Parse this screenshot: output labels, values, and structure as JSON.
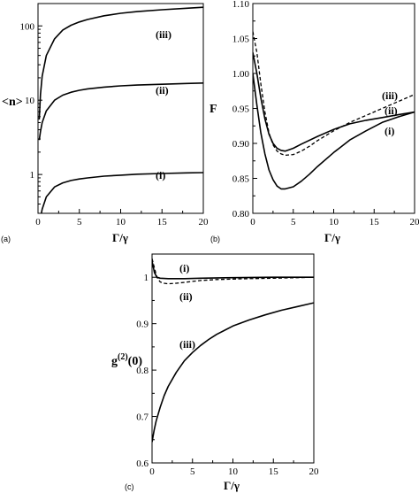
{
  "chart_data": [
    {
      "type": "line",
      "panel_label": "(a)",
      "xlabel": "Γ/γ",
      "ylabel": "<n>",
      "xlim": [
        0,
        20
      ],
      "ylim": [
        0.3,
        200
      ],
      "yscale": "log",
      "xticks": [
        0,
        5,
        10,
        15,
        20
      ],
      "yticks": [
        1,
        10,
        100
      ],
      "series": [
        {
          "name": "(i)",
          "style": "solid",
          "x": [
            0.3,
            0.5,
            1,
            2,
            3,
            4,
            5,
            6,
            8,
            10,
            12,
            15,
            18,
            20
          ],
          "y": [
            0.26,
            0.34,
            0.5,
            0.68,
            0.77,
            0.83,
            0.87,
            0.9,
            0.95,
            0.98,
            1.01,
            1.03,
            1.05,
            1.06
          ]
        },
        {
          "name": "(ii)",
          "style": "solid",
          "x": [
            0.15,
            0.3,
            0.5,
            1,
            2,
            3,
            4,
            5,
            6,
            8,
            10,
            12,
            15,
            18,
            20
          ],
          "y": [
            2.9,
            3.8,
            5.0,
            7.2,
            10,
            11.7,
            12.8,
            13.6,
            14.2,
            15,
            15.6,
            16,
            16.4,
            16.8,
            17
          ]
        },
        {
          "name": "(iii)",
          "style": "solid",
          "x": [
            0.15,
            0.3,
            0.5,
            1,
            2,
            3,
            4,
            5,
            6,
            8,
            10,
            12,
            15,
            18,
            20
          ],
          "y": [
            5.5,
            12,
            21,
            40,
            67,
            88,
            102,
            113,
            122,
            137,
            148,
            156,
            165,
            173,
            178
          ]
        }
      ],
      "annotations": [
        "(i)",
        "(ii)",
        "(iii)"
      ]
    },
    {
      "type": "line",
      "panel_label": "(b)",
      "xlabel": "Γ/γ",
      "ylabel": "F",
      "xlim": [
        0,
        20
      ],
      "ylim": [
        0.8,
        1.1
      ],
      "xticks": [
        0,
        5,
        10,
        15,
        20
      ],
      "yticks": [
        0.8,
        0.85,
        0.9,
        0.95,
        1.0,
        1.05,
        1.1
      ],
      "ytick_labels": [
        "0.80",
        "0.85",
        "0.90",
        "0.95",
        "1.00",
        "1.05",
        "1.10"
      ],
      "series": [
        {
          "name": "(i)",
          "style": "solid",
          "x": [
            0,
            0.5,
            1,
            1.5,
            2,
            2.5,
            3,
            3.5,
            4,
            5,
            6,
            7,
            8,
            10,
            12,
            14,
            16,
            18,
            20
          ],
          "y": [
            1.0,
            0.955,
            0.915,
            0.885,
            0.862,
            0.848,
            0.839,
            0.835,
            0.835,
            0.838,
            0.846,
            0.856,
            0.867,
            0.887,
            0.905,
            0.918,
            0.93,
            0.938,
            0.945
          ]
        },
        {
          "name": "(ii)",
          "style": "solid",
          "x": [
            0,
            0.5,
            1,
            1.5,
            2,
            2.5,
            3,
            3.5,
            4,
            5,
            6,
            8,
            10,
            12,
            14,
            16,
            18,
            20
          ],
          "y": [
            1.03,
            1.0,
            0.965,
            0.935,
            0.913,
            0.9,
            0.893,
            0.89,
            0.889,
            0.893,
            0.899,
            0.91,
            0.92,
            0.928,
            0.933,
            0.937,
            0.941,
            0.945
          ]
        },
        {
          "name": "(iii)",
          "style": "dashed",
          "x": [
            0,
            0.5,
            1,
            1.5,
            2,
            2.5,
            3,
            3.5,
            4,
            5,
            6,
            7,
            8,
            10,
            12,
            14,
            16,
            18,
            20
          ],
          "y": [
            1.06,
            1.03,
            0.985,
            0.945,
            0.915,
            0.898,
            0.889,
            0.885,
            0.883,
            0.884,
            0.889,
            0.896,
            0.904,
            0.918,
            0.93,
            0.94,
            0.95,
            0.96,
            0.97
          ]
        }
      ],
      "annotations": [
        "(iii)",
        "(ii)",
        "(i)"
      ]
    },
    {
      "type": "line",
      "panel_label": "(c)",
      "xlabel": "Γ/γ",
      "ylabel": "g(2)(0)",
      "xlim": [
        0,
        20
      ],
      "ylim": [
        0.6,
        1.05
      ],
      "xticks": [
        0,
        5,
        10,
        15,
        20
      ],
      "yticks": [
        0.6,
        0.7,
        0.8,
        0.9,
        1.0
      ],
      "series": [
        {
          "name": "(i)",
          "style": "solid",
          "x": [
            0,
            0.3,
            0.6,
            1,
            2,
            4,
            6,
            10,
            15,
            20
          ],
          "y": [
            1.035,
            1.01,
            1.0,
            0.998,
            0.997,
            0.997,
            0.998,
            0.999,
            1.0,
            1.0
          ]
        },
        {
          "name": "(ii)",
          "style": "dashed",
          "x": [
            0,
            0.3,
            0.6,
            1,
            1.5,
            2,
            3,
            4,
            5,
            6,
            8,
            10,
            12,
            15,
            18,
            20
          ],
          "y": [
            1.04,
            1.02,
            1.0,
            0.99,
            0.987,
            0.986,
            0.987,
            0.989,
            0.991,
            0.993,
            0.995,
            0.996,
            0.997,
            0.998,
            0.999,
            1.0
          ]
        },
        {
          "name": "(iii)",
          "style": "solid",
          "x": [
            0,
            0.25,
            0.5,
            1,
            1.5,
            2,
            3,
            4,
            5,
            6,
            7,
            8,
            10,
            12,
            14,
            16,
            18,
            20
          ],
          "y": [
            0.645,
            0.67,
            0.69,
            0.72,
            0.745,
            0.765,
            0.795,
            0.82,
            0.838,
            0.853,
            0.866,
            0.877,
            0.895,
            0.908,
            0.919,
            0.929,
            0.937,
            0.945
          ]
        }
      ],
      "annotations": [
        "(i)",
        "(ii)",
        "(iii)"
      ]
    }
  ]
}
